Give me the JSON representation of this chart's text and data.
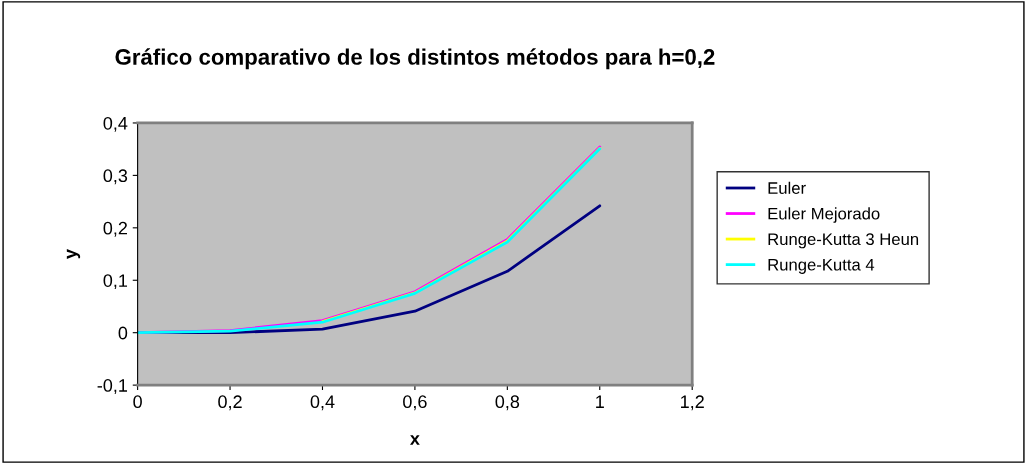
{
  "chart_data": {
    "type": "line",
    "title": "Gráfico comparativo de los distintos métodos para h=0,2",
    "xlabel": "x",
    "ylabel": "y",
    "x": [
      0,
      0.2,
      0.4,
      0.6,
      0.8,
      1
    ],
    "series": [
      {
        "name": "Euler",
        "color": "#000080",
        "values": [
          0,
          0,
          0.007,
          0.041,
          0.117,
          0.242
        ]
      },
      {
        "name": "Euler Mejorado",
        "color": "#ff00ff",
        "values": [
          0,
          0.004,
          0.023,
          0.078,
          0.178,
          0.354
        ]
      },
      {
        "name": "Runge-Kutta 3 Heun",
        "color": "#ffff00",
        "values": [
          null,
          null,
          0.021,
          0.076,
          0.175,
          0.352
        ]
      },
      {
        "name": "Runge-Kutta 4",
        "color": "#00ffff",
        "values": [
          0,
          0.003,
          0.02,
          0.075,
          0.173,
          0.351
        ]
      }
    ],
    "xlim": [
      0,
      1.2
    ],
    "ylim": [
      -0.1,
      0.4
    ],
    "xticks": [
      0,
      {
        "value": 0.2,
        "label": "0,2"
      },
      {
        "value": 0.4,
        "label": "0,4"
      },
      {
        "value": 0.6,
        "label": "0,6"
      },
      {
        "value": 0.8,
        "label": "0,8"
      },
      1,
      {
        "value": 1.2,
        "label": "1,2"
      }
    ],
    "yticks": [
      {
        "value": -0.1,
        "label": "-0,1"
      },
      0,
      {
        "value": 0.1,
        "label": "0,1"
      },
      {
        "value": 0.2,
        "label": "0,2"
      },
      {
        "value": 0.3,
        "label": "0,3"
      },
      {
        "value": 0.4,
        "label": "0,4"
      }
    ],
    "grid": false,
    "legend": "right",
    "marker": "none",
    "line_style": "solid"
  }
}
